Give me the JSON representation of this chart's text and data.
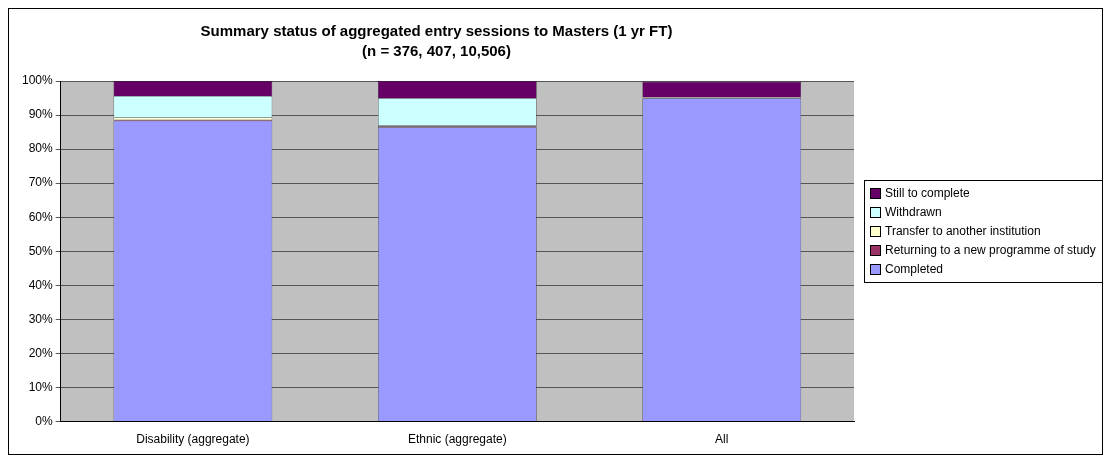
{
  "chart_data": {
    "type": "bar",
    "stacked": true,
    "title": "Summary status of aggregated entry sessions to Masters (1 yr FT)",
    "subtitle": "(n = 376, 407, 10,506)",
    "categories": [
      "Disability (aggregate)",
      "Ethnic (aggregate)",
      "All"
    ],
    "series": [
      {
        "name": "Completed",
        "color": "#9999ff",
        "values": [
          88.3,
          86.4,
          94.9
        ]
      },
      {
        "name": "Returning to a new programme of study",
        "color": "#993366",
        "values": [
          0.3,
          0.3,
          0.2
        ]
      },
      {
        "name": "Transfer to another institution",
        "color": "#ffffcc",
        "values": [
          0.7,
          0.2,
          0.1
        ]
      },
      {
        "name": "Withdrawn",
        "color": "#ccffff",
        "values": [
          6.3,
          8.0,
          null
        ]
      },
      {
        "name": "Still to complete",
        "color": "#660066",
        "values": [
          4.4,
          5.1,
          4.6
        ]
      }
    ],
    "ylim": [
      0,
      100
    ],
    "yticks": [
      {
        "value": 0,
        "label": "0%"
      },
      {
        "value": 10,
        "label": "10%"
      },
      {
        "value": 20,
        "label": "20%"
      },
      {
        "value": 30,
        "label": "30%"
      },
      {
        "value": 40,
        "label": "40%"
      },
      {
        "value": 50,
        "label": "50%"
      },
      {
        "value": 60,
        "label": "60%"
      },
      {
        "value": 70,
        "label": "70%"
      },
      {
        "value": 80,
        "label": "80%"
      },
      {
        "value": 90,
        "label": "90%"
      },
      {
        "value": 100,
        "label": "100%"
      }
    ],
    "grid": "y",
    "legend": "right"
  }
}
